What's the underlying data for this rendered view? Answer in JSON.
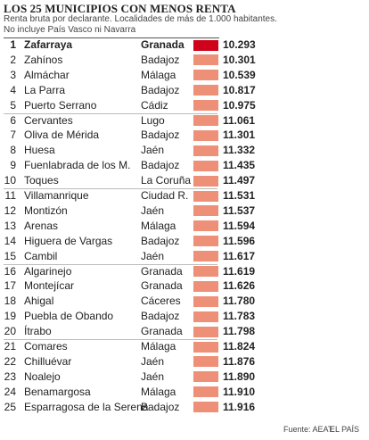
{
  "header": {
    "title": "LOS 25 MUNICIPIOS CON MENOS RENTA",
    "subtitle_1": "Renta bruta por declarante. Localidades de más de 1.000 habitantes.",
    "subtitle_2": "No incluye País Vasco ni Navarra"
  },
  "table": {
    "rows": [
      [
        1,
        "Zafarraya",
        "Granada",
        "10.293"
      ],
      [
        2,
        "Zahínos",
        "Badajoz",
        "10.301"
      ],
      [
        3,
        "Almáchar",
        "Málaga",
        "10.539"
      ],
      [
        4,
        "La Parra",
        "Badajoz",
        "10.817"
      ],
      [
        5,
        "Puerto Serrano",
        "Cádiz",
        "10.975"
      ],
      [
        6,
        "Cervantes",
        "Lugo",
        "11.061"
      ],
      [
        7,
        "Oliva de Mérida",
        "Badajoz",
        "11.301"
      ],
      [
        8,
        "Huesa",
        "Jaén",
        "11.332"
      ],
      [
        9,
        "Fuenlabrada de los M.",
        "Badajoz",
        "11.435"
      ],
      [
        10,
        "Toques",
        "La Coruña",
        "11.497"
      ],
      [
        11,
        "Villamanrique",
        "Ciudad R.",
        "11.531"
      ],
      [
        12,
        "Montizón",
        "Jaén",
        "11.537"
      ],
      [
        13,
        "Arenas",
        "Málaga",
        "11.594"
      ],
      [
        14,
        "Higuera de Vargas",
        "Badajoz",
        "11.596"
      ],
      [
        15,
        "Cambil",
        "Jaén",
        "11.617"
      ],
      [
        16,
        "Algarinejo",
        "Granada",
        "11.619"
      ],
      [
        17,
        "Montejícar",
        "Granada",
        "11.626"
      ],
      [
        18,
        "Ahigal",
        "Cáceres",
        "11.780"
      ],
      [
        19,
        "Puebla de Obando",
        "Badajoz",
        "11.783"
      ],
      [
        20,
        "Ítrabo",
        "Granada",
        "11.798"
      ],
      [
        21,
        "Comares",
        "Málaga",
        "11.824"
      ],
      [
        22,
        "Chilluévar",
        "Jaén",
        "11.876"
      ],
      [
        23,
        "Noalejo",
        "Jaén",
        "11.890"
      ],
      [
        24,
        "Benamargosa",
        "Málaga",
        "11.910"
      ],
      [
        25,
        "Esparragosa de la Serena",
        "Badajoz",
        "11.916"
      ]
    ]
  },
  "footer": {
    "source": "Fuente: AEAT.",
    "credit": "EL PAÍS"
  }
}
